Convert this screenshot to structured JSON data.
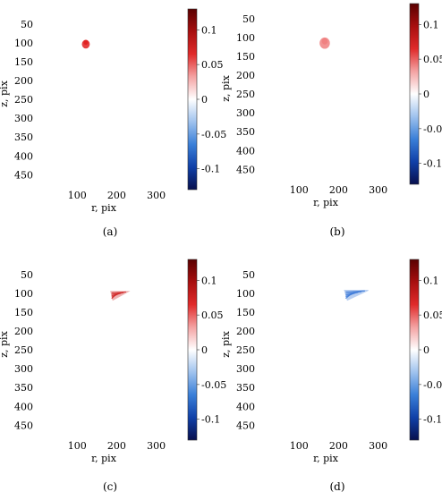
{
  "colormap": {
    "stops": [
      "#08104e",
      "#1040a8",
      "#3a7fd8",
      "#9fc2ee",
      "#ffffff",
      "#f4a2a2",
      "#e02a2a",
      "#a80f0f",
      "#5a0000"
    ],
    "range": [
      -0.13,
      0.13
    ],
    "ticks": [
      0.1,
      0.05,
      0,
      -0.05,
      -0.1
    ],
    "tick_labels": [
      "0.1",
      "0.05",
      "0",
      "-0.05",
      "-0.1"
    ]
  },
  "chart_data": [
    {
      "type": "heatmap",
      "caption": "(a)",
      "xlabel": "r, pix",
      "ylabel": "z, pix",
      "xlim": [
        0,
        380
      ],
      "ylim": [
        480,
        10
      ],
      "xticks": [
        100,
        200,
        300
      ],
      "xtick_labels": [
        "100",
        "200",
        "300"
      ],
      "yticks": [
        50,
        100,
        150,
        200,
        250,
        300,
        350,
        400,
        450
      ],
      "ytick_labels": [
        "50",
        "100",
        "150",
        "200",
        "250",
        "300",
        "350",
        "400",
        "450"
      ],
      "feature": {
        "shape": "filled-blob",
        "sign": "positive",
        "r_range": [
          112,
          132
        ],
        "z_range": [
          92,
          115
        ],
        "peak_value": 0.09,
        "color": "#e02020"
      }
    },
    {
      "type": "heatmap",
      "caption": "(b)",
      "xlabel": "r, pix",
      "ylabel": "z, pix",
      "xlim": [
        0,
        380
      ],
      "ylim": [
        480,
        10
      ],
      "xticks": [
        100,
        200,
        300
      ],
      "xtick_labels": [
        "100",
        "200",
        "300"
      ],
      "yticks": [
        50,
        100,
        150,
        200,
        250,
        300,
        350,
        400,
        450
      ],
      "ytick_labels": [
        "50",
        "100",
        "150",
        "200",
        "250",
        "300",
        "350",
        "400",
        "450"
      ],
      "feature": {
        "shape": "filled-blob",
        "sign": "positive",
        "r_range": [
          152,
          178
        ],
        "z_range": [
          100,
          130
        ],
        "peak_value": 0.04,
        "color": "#f08080"
      }
    },
    {
      "type": "heatmap",
      "caption": "(c)",
      "xlabel": "r, pix",
      "ylabel": "z, pix",
      "xlim": [
        0,
        380
      ],
      "ylim": [
        480,
        10
      ],
      "xticks": [
        100,
        200,
        300
      ],
      "xtick_labels": [
        "100",
        "200",
        "300"
      ],
      "yticks": [
        50,
        100,
        150,
        200,
        250,
        300,
        350,
        400,
        450
      ],
      "ytick_labels": [
        "50",
        "100",
        "150",
        "200",
        "250",
        "300",
        "350",
        "400",
        "450"
      ],
      "feature": {
        "shape": "triangle",
        "sign": "positive",
        "r_range": [
          185,
          230
        ],
        "z_range": [
          95,
          118
        ],
        "peak_value": 0.08,
        "color": "#d02525"
      }
    },
    {
      "type": "heatmap",
      "caption": "(d)",
      "xlabel": "r, pix",
      "ylabel": "z, pix",
      "xlim": [
        0,
        380
      ],
      "ylim": [
        480,
        10
      ],
      "xticks": [
        100,
        200,
        300
      ],
      "xtick_labels": [
        "100",
        "200",
        "300"
      ],
      "yticks": [
        50,
        100,
        150,
        200,
        250,
        300,
        350,
        400,
        450
      ],
      "ytick_labels": [
        "50",
        "100",
        "150",
        "200",
        "250",
        "300",
        "350",
        "400",
        "450"
      ],
      "feature": {
        "shape": "triangle",
        "sign": "negative",
        "r_range": [
          215,
          275
        ],
        "z_range": [
          92,
          118
        ],
        "peak_value": -0.05,
        "color": "#3a78d8"
      }
    }
  ]
}
